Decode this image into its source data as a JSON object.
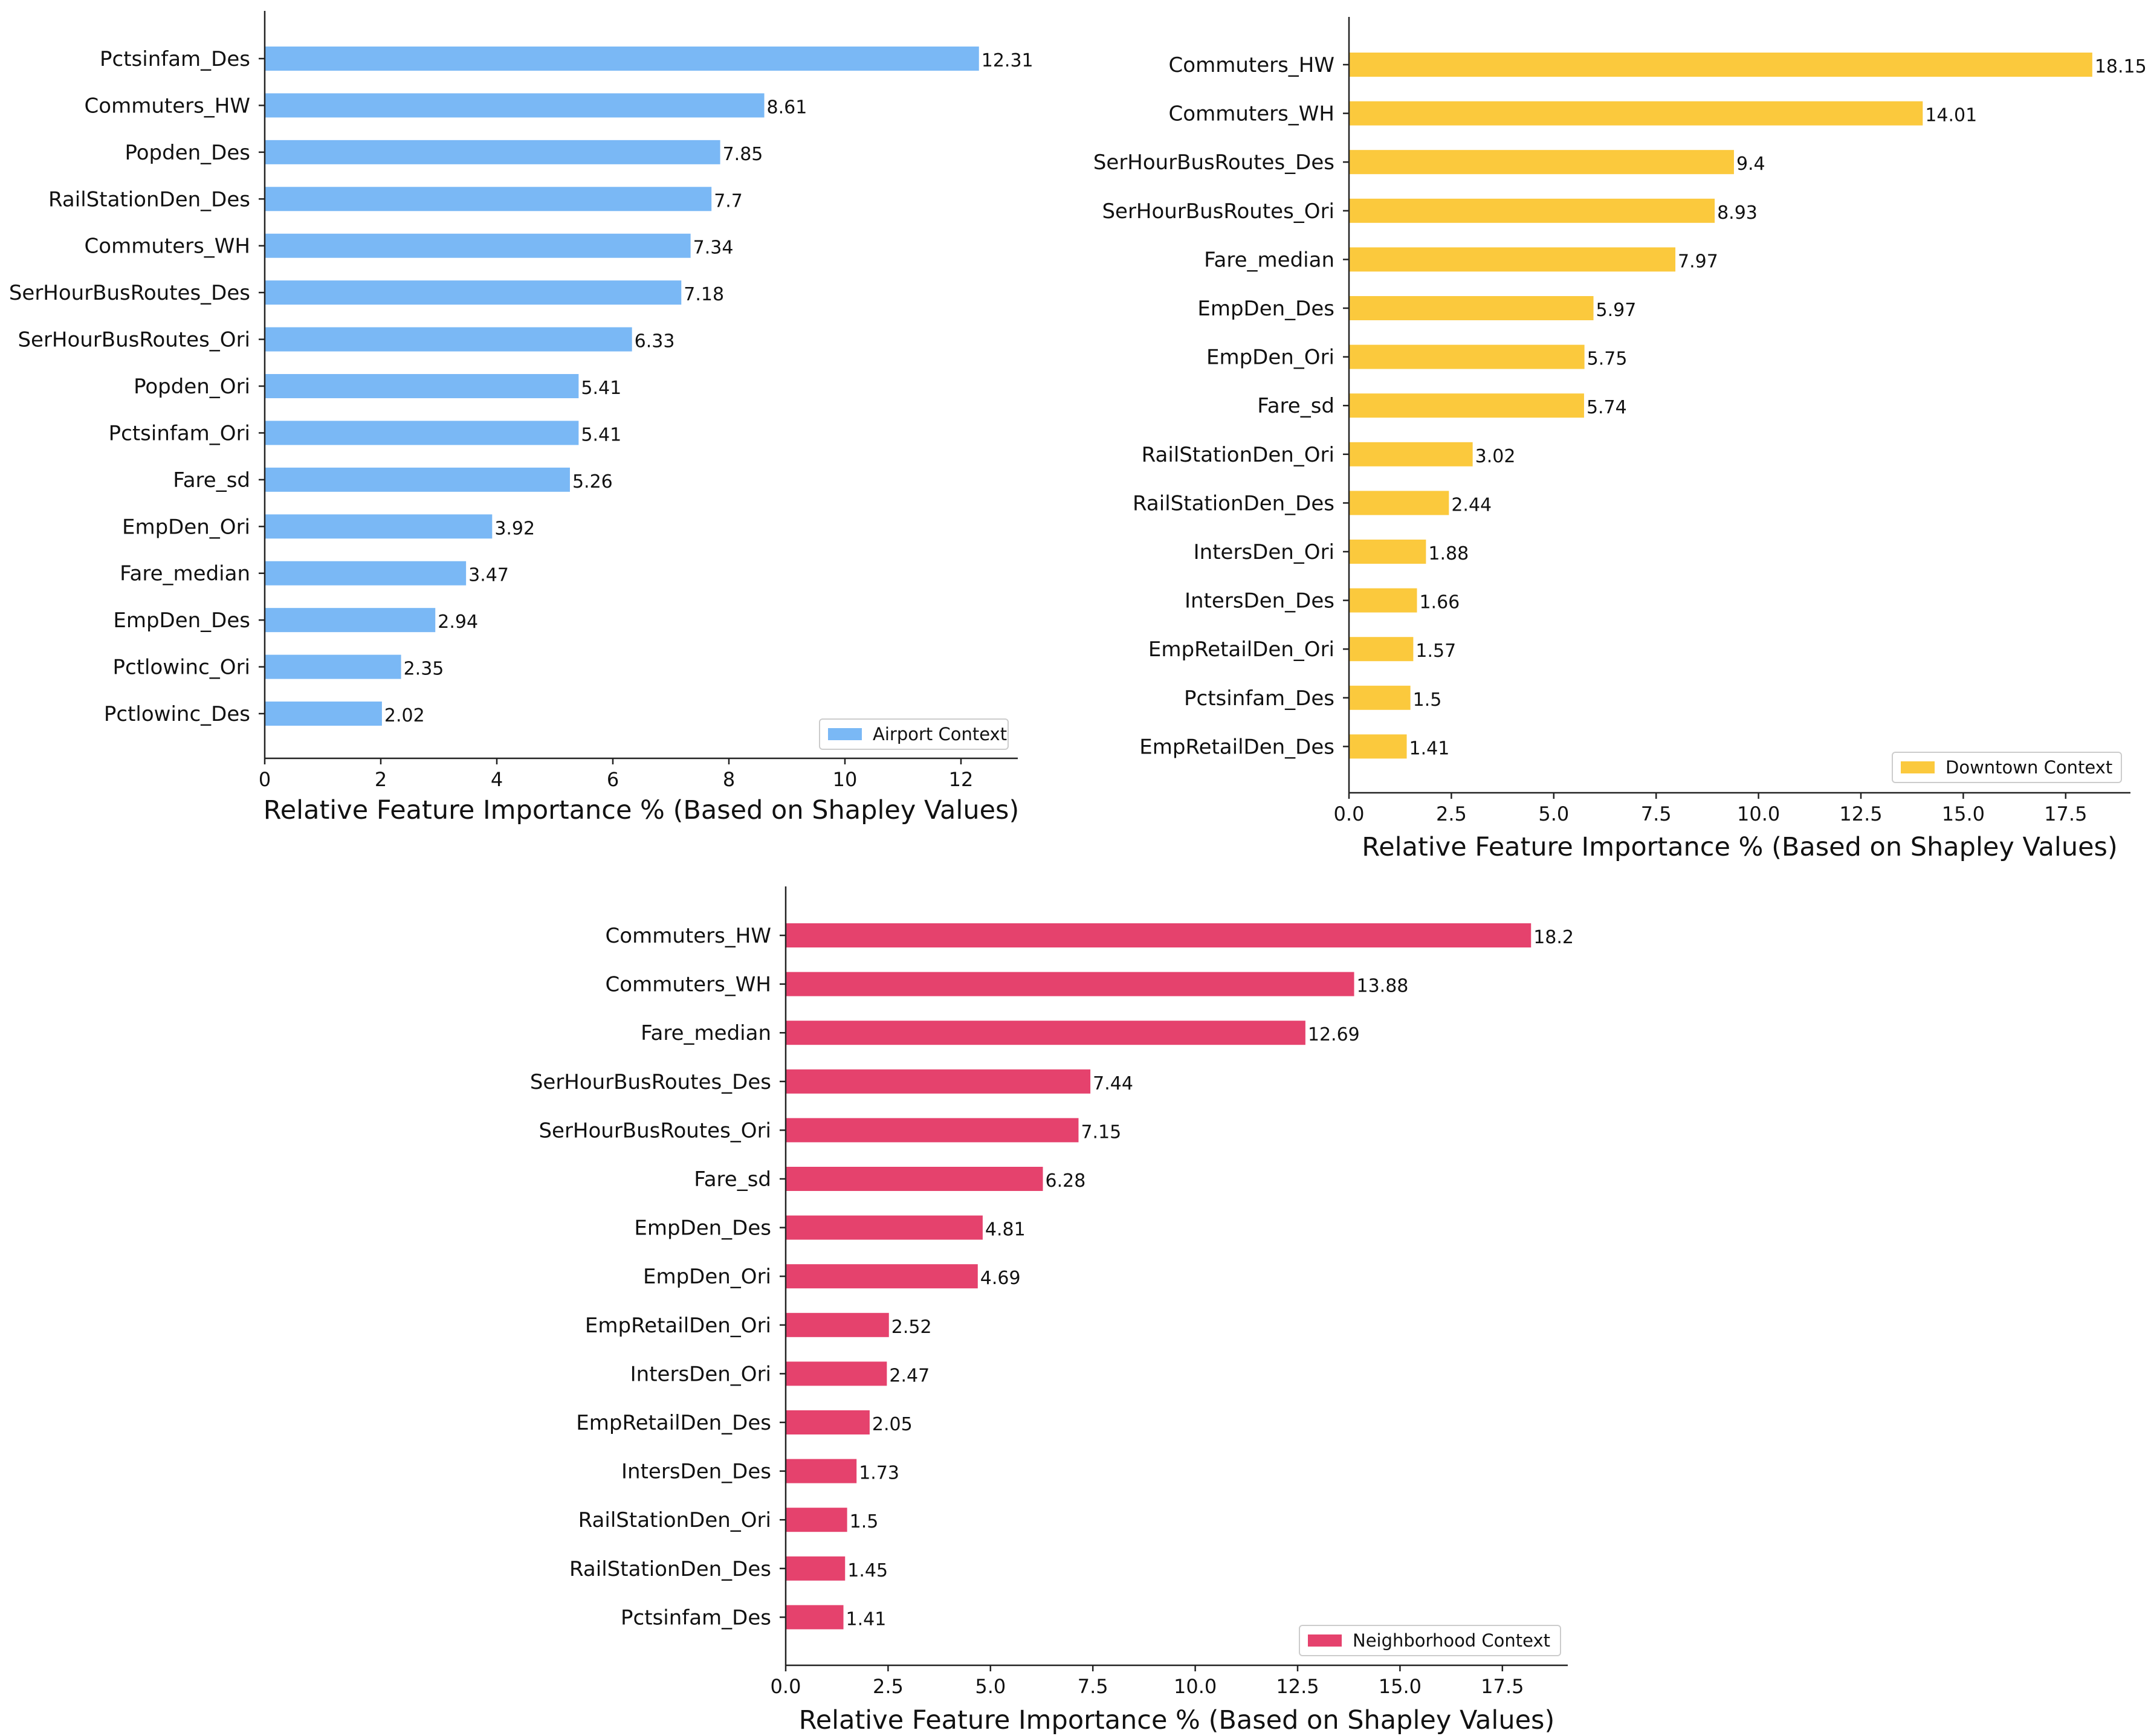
{
  "chart_data": [
    {
      "type": "bar",
      "orientation": "horizontal",
      "legend": "Airport Context",
      "legend_position": "lower-right",
      "color": "#7ab8f5",
      "xlabel": "Relative Feature Importance % (Based on Shapley Values)",
      "ylabel": "",
      "xlim": [
        0,
        13
      ],
      "xticks": [
        0,
        2,
        4,
        6,
        8,
        10,
        12
      ],
      "xtick_labels": [
        "0",
        "2",
        "4",
        "6",
        "8",
        "10",
        "12"
      ],
      "categories": [
        "Pctsinfam_Des",
        "Commuters_HW",
        "Popden_Des",
        "RailStationDen_Des",
        "Commuters_WH",
        "SerHourBusRoutes_Des",
        "SerHourBusRoutes_Ori",
        "Popden_Ori",
        "Pctsinfam_Ori",
        "Fare_sd",
        "EmpDen_Ori",
        "Fare_median",
        "EmpDen_Des",
        "Pctlowinc_Ori",
        "Pctlowinc_Des"
      ],
      "values": [
        12.31,
        8.61,
        7.85,
        7.7,
        7.34,
        7.18,
        6.33,
        5.41,
        5.41,
        5.26,
        3.92,
        3.47,
        2.94,
        2.35,
        2.02
      ],
      "value_labels": [
        "12.31",
        "8.61",
        "7.85",
        "7.7",
        "7.34",
        "7.18",
        "6.33",
        "5.41",
        "5.41",
        "5.26",
        "3.92",
        "3.47",
        "2.94",
        "2.35",
        "2.02"
      ]
    },
    {
      "type": "bar",
      "orientation": "horizontal",
      "legend": "Downtown Context",
      "legend_position": "lower-right",
      "color": "#fbc93d",
      "xlabel": "Relative Feature Importance % (Based on Shapley Values)",
      "ylabel": "",
      "xlim": [
        0,
        19.1
      ],
      "xticks": [
        0,
        2.5,
        5,
        7.5,
        10,
        12.5,
        15,
        17.5
      ],
      "xtick_labels": [
        "0.0",
        "2.5",
        "5.0",
        "7.5",
        "10.0",
        "12.5",
        "15.0",
        "17.5"
      ],
      "categories": [
        "Commuters_HW",
        "Commuters_WH",
        "SerHourBusRoutes_Des",
        "SerHourBusRoutes_Ori",
        "Fare_median",
        "EmpDen_Des",
        "EmpDen_Ori",
        "Fare_sd",
        "RailStationDen_Ori",
        "RailStationDen_Des",
        "IntersDen_Ori",
        "IntersDen_Des",
        "EmpRetailDen_Ori",
        "Pctsinfam_Des",
        "EmpRetailDen_Des"
      ],
      "values": [
        18.15,
        14.01,
        9.4,
        8.93,
        7.97,
        5.97,
        5.75,
        5.74,
        3.02,
        2.44,
        1.88,
        1.66,
        1.57,
        1.5,
        1.41
      ],
      "value_labels": [
        "18.15",
        "14.01",
        "9.4",
        "8.93",
        "7.97",
        "5.97",
        "5.75",
        "5.74",
        "3.02",
        "2.44",
        "1.88",
        "1.66",
        "1.57",
        "1.5",
        "1.41"
      ]
    },
    {
      "type": "bar",
      "orientation": "horizontal",
      "legend": "Neighborhood Context",
      "legend_position": "lower-right",
      "color": "#e5426d",
      "xlabel": "Relative Feature Importance % (Based on Shapley Values)",
      "ylabel": "",
      "xlim": [
        0,
        19.1
      ],
      "xticks": [
        0,
        2.5,
        5,
        7.5,
        10,
        12.5,
        15,
        17.5
      ],
      "xtick_labels": [
        "0.0",
        "2.5",
        "5.0",
        "7.5",
        "10.0",
        "12.5",
        "15.0",
        "17.5"
      ],
      "categories": [
        "Commuters_HW",
        "Commuters_WH",
        "Fare_median",
        "SerHourBusRoutes_Des",
        "SerHourBusRoutes_Ori",
        "Fare_sd",
        "EmpDen_Des",
        "EmpDen_Ori",
        "EmpRetailDen_Ori",
        "IntersDen_Ori",
        "EmpRetailDen_Des",
        "IntersDen_Des",
        "RailStationDen_Ori",
        "RailStationDen_Des",
        "Pctsinfam_Des"
      ],
      "values": [
        18.2,
        13.88,
        12.69,
        7.44,
        7.15,
        6.28,
        4.81,
        4.69,
        2.52,
        2.47,
        2.05,
        1.73,
        1.5,
        1.45,
        1.41
      ],
      "value_labels": [
        "18.2",
        "13.88",
        "12.69",
        "7.44",
        "7.15",
        "6.28",
        "4.81",
        "4.69",
        "2.52",
        "2.47",
        "2.05",
        "1.73",
        "1.5",
        "1.45",
        "1.41"
      ]
    }
  ]
}
